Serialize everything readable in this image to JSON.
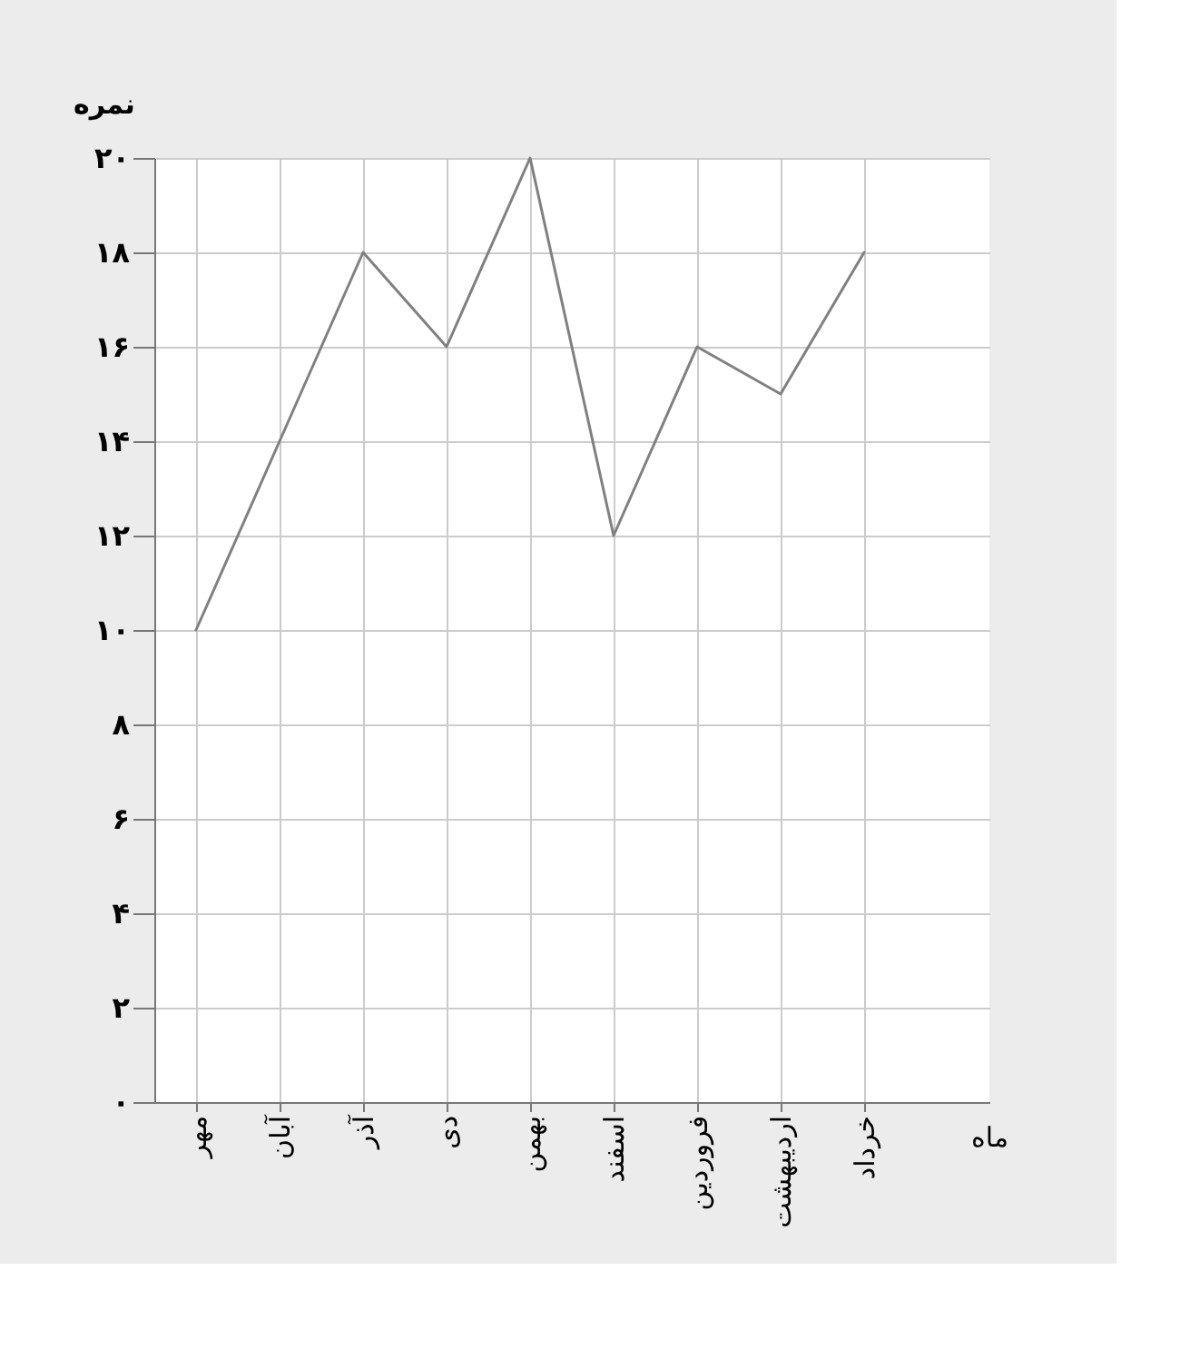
{
  "chart_data": {
    "type": "line",
    "xlabel": "ماه",
    "ylabel": "نمره",
    "categories": [
      "مهر",
      "آبان",
      "آذر",
      "دی",
      "بهمن",
      "اسفند",
      "فروردین",
      "اردیبهشت",
      "خرداد"
    ],
    "series": [
      {
        "color": "#808080",
        "values": [
          10,
          14,
          18,
          16,
          20,
          12,
          16,
          15,
          18
        ]
      }
    ],
    "ylim": [
      0,
      20
    ],
    "yticks": [
      {
        "value": 0,
        "label": "۰"
      },
      {
        "value": 2,
        "label": "۲"
      },
      {
        "value": 4,
        "label": "۴"
      },
      {
        "value": 6,
        "label": "۶"
      },
      {
        "value": 8,
        "label": "۸"
      },
      {
        "value": 10,
        "label": "۱۰"
      },
      {
        "value": 12,
        "label": "۱۲"
      },
      {
        "value": 14,
        "label": "۱۴"
      },
      {
        "value": 16,
        "label": "۱۶"
      },
      {
        "value": 18,
        "label": "۱۸"
      },
      {
        "value": 20,
        "label": "۲۰"
      }
    ],
    "grid": true,
    "marker": "none",
    "line_style": "solid"
  }
}
